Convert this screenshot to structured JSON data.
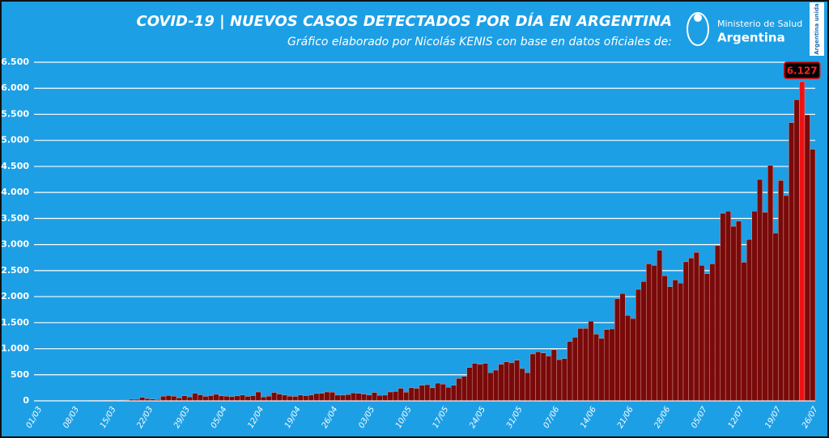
{
  "chart_data": {
    "type": "bar",
    "title": "COVID-19  |  NUEVOS CASOS DETECTADOS POR DÍA EN ARGENTINA",
    "subtitle": "Gráfico elaborado por Nicolás KENIS con base en datos oficiales de:",
    "logo": {
      "ministry": "Ministerio de Salud",
      "country": "Argentina",
      "badge": "Argentina unida"
    },
    "color": "#7a0a0a",
    "highlight_color": "#ee1111",
    "grid": true,
    "ylim": [
      0,
      6500
    ],
    "yticks": [
      0,
      500,
      {
        "value": 1000,
        "label": "1.000"
      },
      {
        "value": 1500,
        "label": "1.500"
      },
      {
        "value": 2000,
        "label": "2.000"
      },
      {
        "value": 2500,
        "label": "2.500"
      },
      {
        "value": 3000,
        "label": "3.000"
      },
      {
        "value": 3500,
        "label": "3.500"
      },
      {
        "value": 4000,
        "label": "4.000"
      },
      {
        "value": 4500,
        "label": "4.500"
      },
      {
        "value": 5000,
        "label": "5.000"
      },
      {
        "value": 5500,
        "label": "5.500"
      },
      {
        "value": 6000,
        "label": "6.000"
      },
      {
        "value": 6500,
        "label": "6.500"
      }
    ],
    "categories": [
      "01/03",
      null,
      null,
      null,
      null,
      null,
      null,
      "08/03",
      null,
      null,
      null,
      null,
      null,
      null,
      "15/03",
      null,
      null,
      null,
      null,
      null,
      null,
      "22/03",
      null,
      null,
      null,
      null,
      null,
      null,
      "29/03",
      null,
      null,
      null,
      null,
      null,
      null,
      "05/04",
      null,
      null,
      null,
      null,
      null,
      null,
      "12/04",
      null,
      null,
      null,
      null,
      null,
      null,
      "19/04",
      null,
      null,
      null,
      null,
      null,
      null,
      "26/04",
      null,
      null,
      null,
      null,
      null,
      null,
      "03/05",
      null,
      null,
      null,
      null,
      null,
      null,
      "10/05",
      null,
      null,
      null,
      null,
      null,
      null,
      "17/05",
      null,
      null,
      null,
      null,
      null,
      null,
      "24/05",
      null,
      null,
      null,
      null,
      null,
      null,
      "31/05",
      null,
      null,
      null,
      null,
      null,
      null,
      "07/06",
      null,
      null,
      null,
      null,
      null,
      null,
      "14/06",
      null,
      null,
      null,
      null,
      null,
      null,
      "21/06",
      null,
      null,
      null,
      null,
      null,
      null,
      "28/06",
      null,
      null,
      null,
      null,
      null,
      null,
      "05/07",
      null,
      null,
      null,
      null,
      null,
      null,
      "12/07",
      null,
      null,
      null,
      null,
      null,
      null,
      "19/07",
      null,
      null,
      null,
      null,
      null,
      null,
      "26/07"
    ],
    "values": [
      0,
      0,
      1,
      0,
      0,
      1,
      1,
      3,
      5,
      2,
      2,
      12,
      3,
      11,
      11,
      9,
      8,
      14,
      31,
      30,
      67,
      41,
      35,
      25,
      87,
      101,
      88,
      55,
      97,
      75,
      146,
      115,
      85,
      100,
      125,
      95,
      88,
      80,
      95,
      110,
      85,
      100,
      170,
      75,
      90,
      160,
      130,
      110,
      90,
      85,
      110,
      100,
      110,
      140,
      145,
      170,
      165,
      110,
      110,
      120,
      150,
      145,
      130,
      110,
      160,
      105,
      110,
      170,
      180,
      240,
      165,
      250,
      240,
      300,
      310,
      250,
      340,
      320,
      260,
      300,
      430,
      470,
      640,
      720,
      700,
      720,
      540,
      590,
      700,
      750,
      730,
      780,
      620,
      540,
      900,
      940,
      920,
      860,
      980,
      790,
      810,
      1140,
      1220,
      1390,
      1390,
      1530,
      1280,
      1200,
      1370,
      1380,
      1960,
      2060,
      1640,
      1580,
      2140,
      2290,
      2630,
      2600,
      2890,
      2400,
      2190,
      2320,
      2260,
      2670,
      2740,
      2850,
      2600,
      2440,
      2630,
      2980,
      3600,
      3640,
      3350,
      3450,
      2660,
      3100,
      3640,
      4250,
      3620,
      4520,
      3220,
      4230,
      3940,
      5340,
      5780,
      6127,
      5490,
      4830
    ],
    "value_labels": [
      null,
      null,
      null,
      null,
      null,
      null,
      null,
      null,
      null,
      null,
      null,
      null,
      null,
      null,
      null,
      null,
      null,
      null,
      null,
      null,
      null,
      null,
      null,
      null,
      null,
      null,
      null,
      null,
      null,
      null,
      null,
      null,
      null,
      null,
      null,
      null,
      null,
      null,
      null,
      null,
      null,
      null,
      null,
      null,
      null,
      null,
      null,
      null,
      null,
      null,
      null,
      null,
      null,
      null,
      null,
      null,
      null,
      null,
      null,
      null,
      null,
      null,
      null,
      null,
      null,
      null,
      null,
      null,
      null,
      null,
      null,
      null,
      null,
      null,
      null,
      null,
      null,
      null,
      null,
      null,
      null,
      null,
      null,
      null,
      null,
      null,
      null,
      null,
      null,
      null,
      null,
      null,
      null,
      null,
      null,
      null,
      null,
      null,
      null,
      null,
      null,
      null,
      null,
      null,
      null,
      null,
      null,
      null,
      null,
      null,
      null,
      null,
      null,
      null,
      null,
      null,
      null,
      null,
      null,
      null,
      null,
      null,
      null,
      null,
      null,
      null,
      null,
      null,
      null,
      null,
      null,
      null,
      null,
      null,
      null,
      null,
      null,
      null,
      null,
      null,
      null,
      null,
      null,
      null,
      null,
      "6.127",
      null,
      null
    ]
  }
}
